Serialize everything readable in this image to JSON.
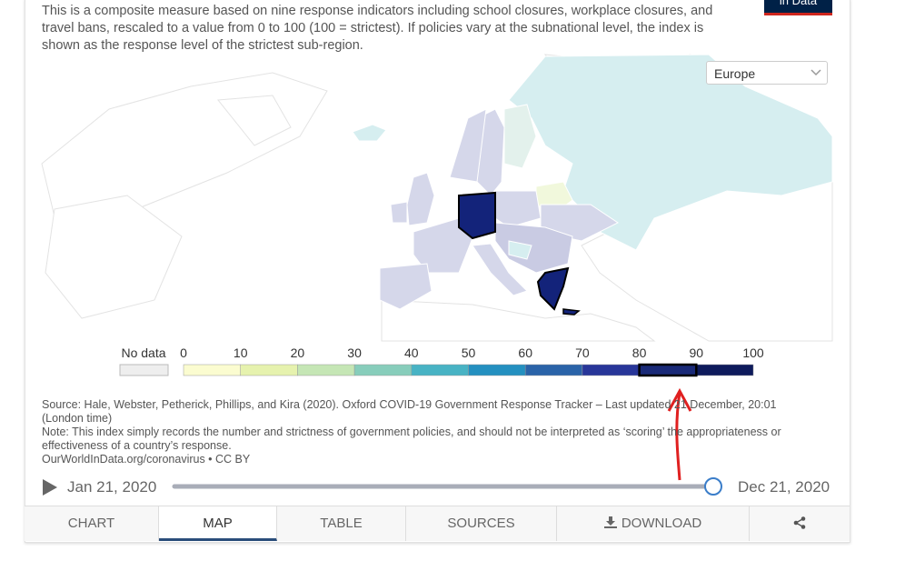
{
  "header": {
    "subtitle": "This is a composite measure based on nine response indicators including school closures, workplace closures, and travel bans, rescaled to a value from 0 to 100 (100 = strictest). If policies vary at the subnational level, the index is shown as the response level of the strictest sub-region.",
    "logo": "in Data"
  },
  "region_selector": "Europe",
  "legend": {
    "no_data_label": "No data",
    "ticks": [
      0,
      10,
      20,
      30,
      40,
      50,
      60,
      70,
      80,
      90,
      100
    ],
    "colors": [
      "#fbfcd0",
      "#e6f2ae",
      "#c5e6b5",
      "#87cdbb",
      "#48b3c4",
      "#2490c0",
      "#2a63a8",
      "#283699",
      "#1a2a78",
      "#0e1b5c"
    ],
    "highlight_bin": 8
  },
  "footer": {
    "source": "Source: Hale, Webster, Petherick, Phillips, and Kira (2020). Oxford COVID-19 Government Response Tracker – Last updated 21 December, 20:01 (London time)",
    "note": "Note: This index simply records the number and strictness of government policies, and should not be interpreted as ‘scoring’ the appropriateness or effectiveness of a country’s response.",
    "url": "OurWorldInData.org/coronavirus • CC BY"
  },
  "timeline": {
    "start": "Jan 21, 2020",
    "end": "Dec 21, 2020"
  },
  "tabs": [
    "CHART",
    "MAP",
    "TABLE",
    "SOURCES",
    "DOWNLOAD"
  ]
}
